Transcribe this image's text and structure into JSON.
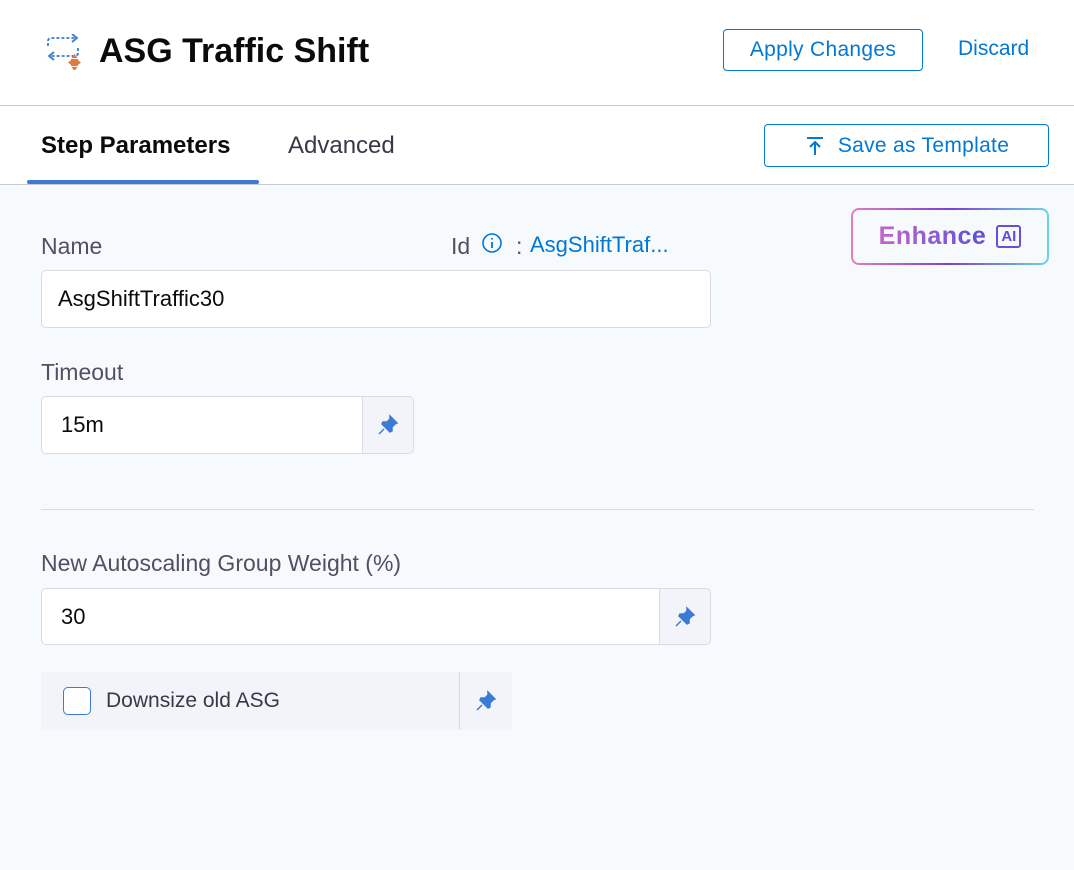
{
  "header": {
    "title": "ASG Traffic Shift",
    "apply_label": "Apply Changes",
    "discard_label": "Discard",
    "icon": "traffic-shift-icon"
  },
  "tabs": [
    {
      "label": "Step Parameters",
      "active": true
    },
    {
      "label": "Advanced",
      "active": false
    }
  ],
  "save_template_label": "Save as Template",
  "enhance": {
    "label": "Enhance",
    "badge": "AI"
  },
  "form": {
    "name_label": "Name",
    "id_label": "Id",
    "id_sep": ":",
    "id_value": "AsgShiftTraf...",
    "name_value": "AsgShiftTraffic30",
    "timeout_label": "Timeout",
    "timeout_value": "15m",
    "weight_label": "New Autoscaling Group Weight (%)",
    "weight_value": "30",
    "downsize_label": "Downsize old ASG",
    "downsize_checked": false
  },
  "colors": {
    "accent": "#0278d5",
    "pin": "#3a7bd5"
  }
}
